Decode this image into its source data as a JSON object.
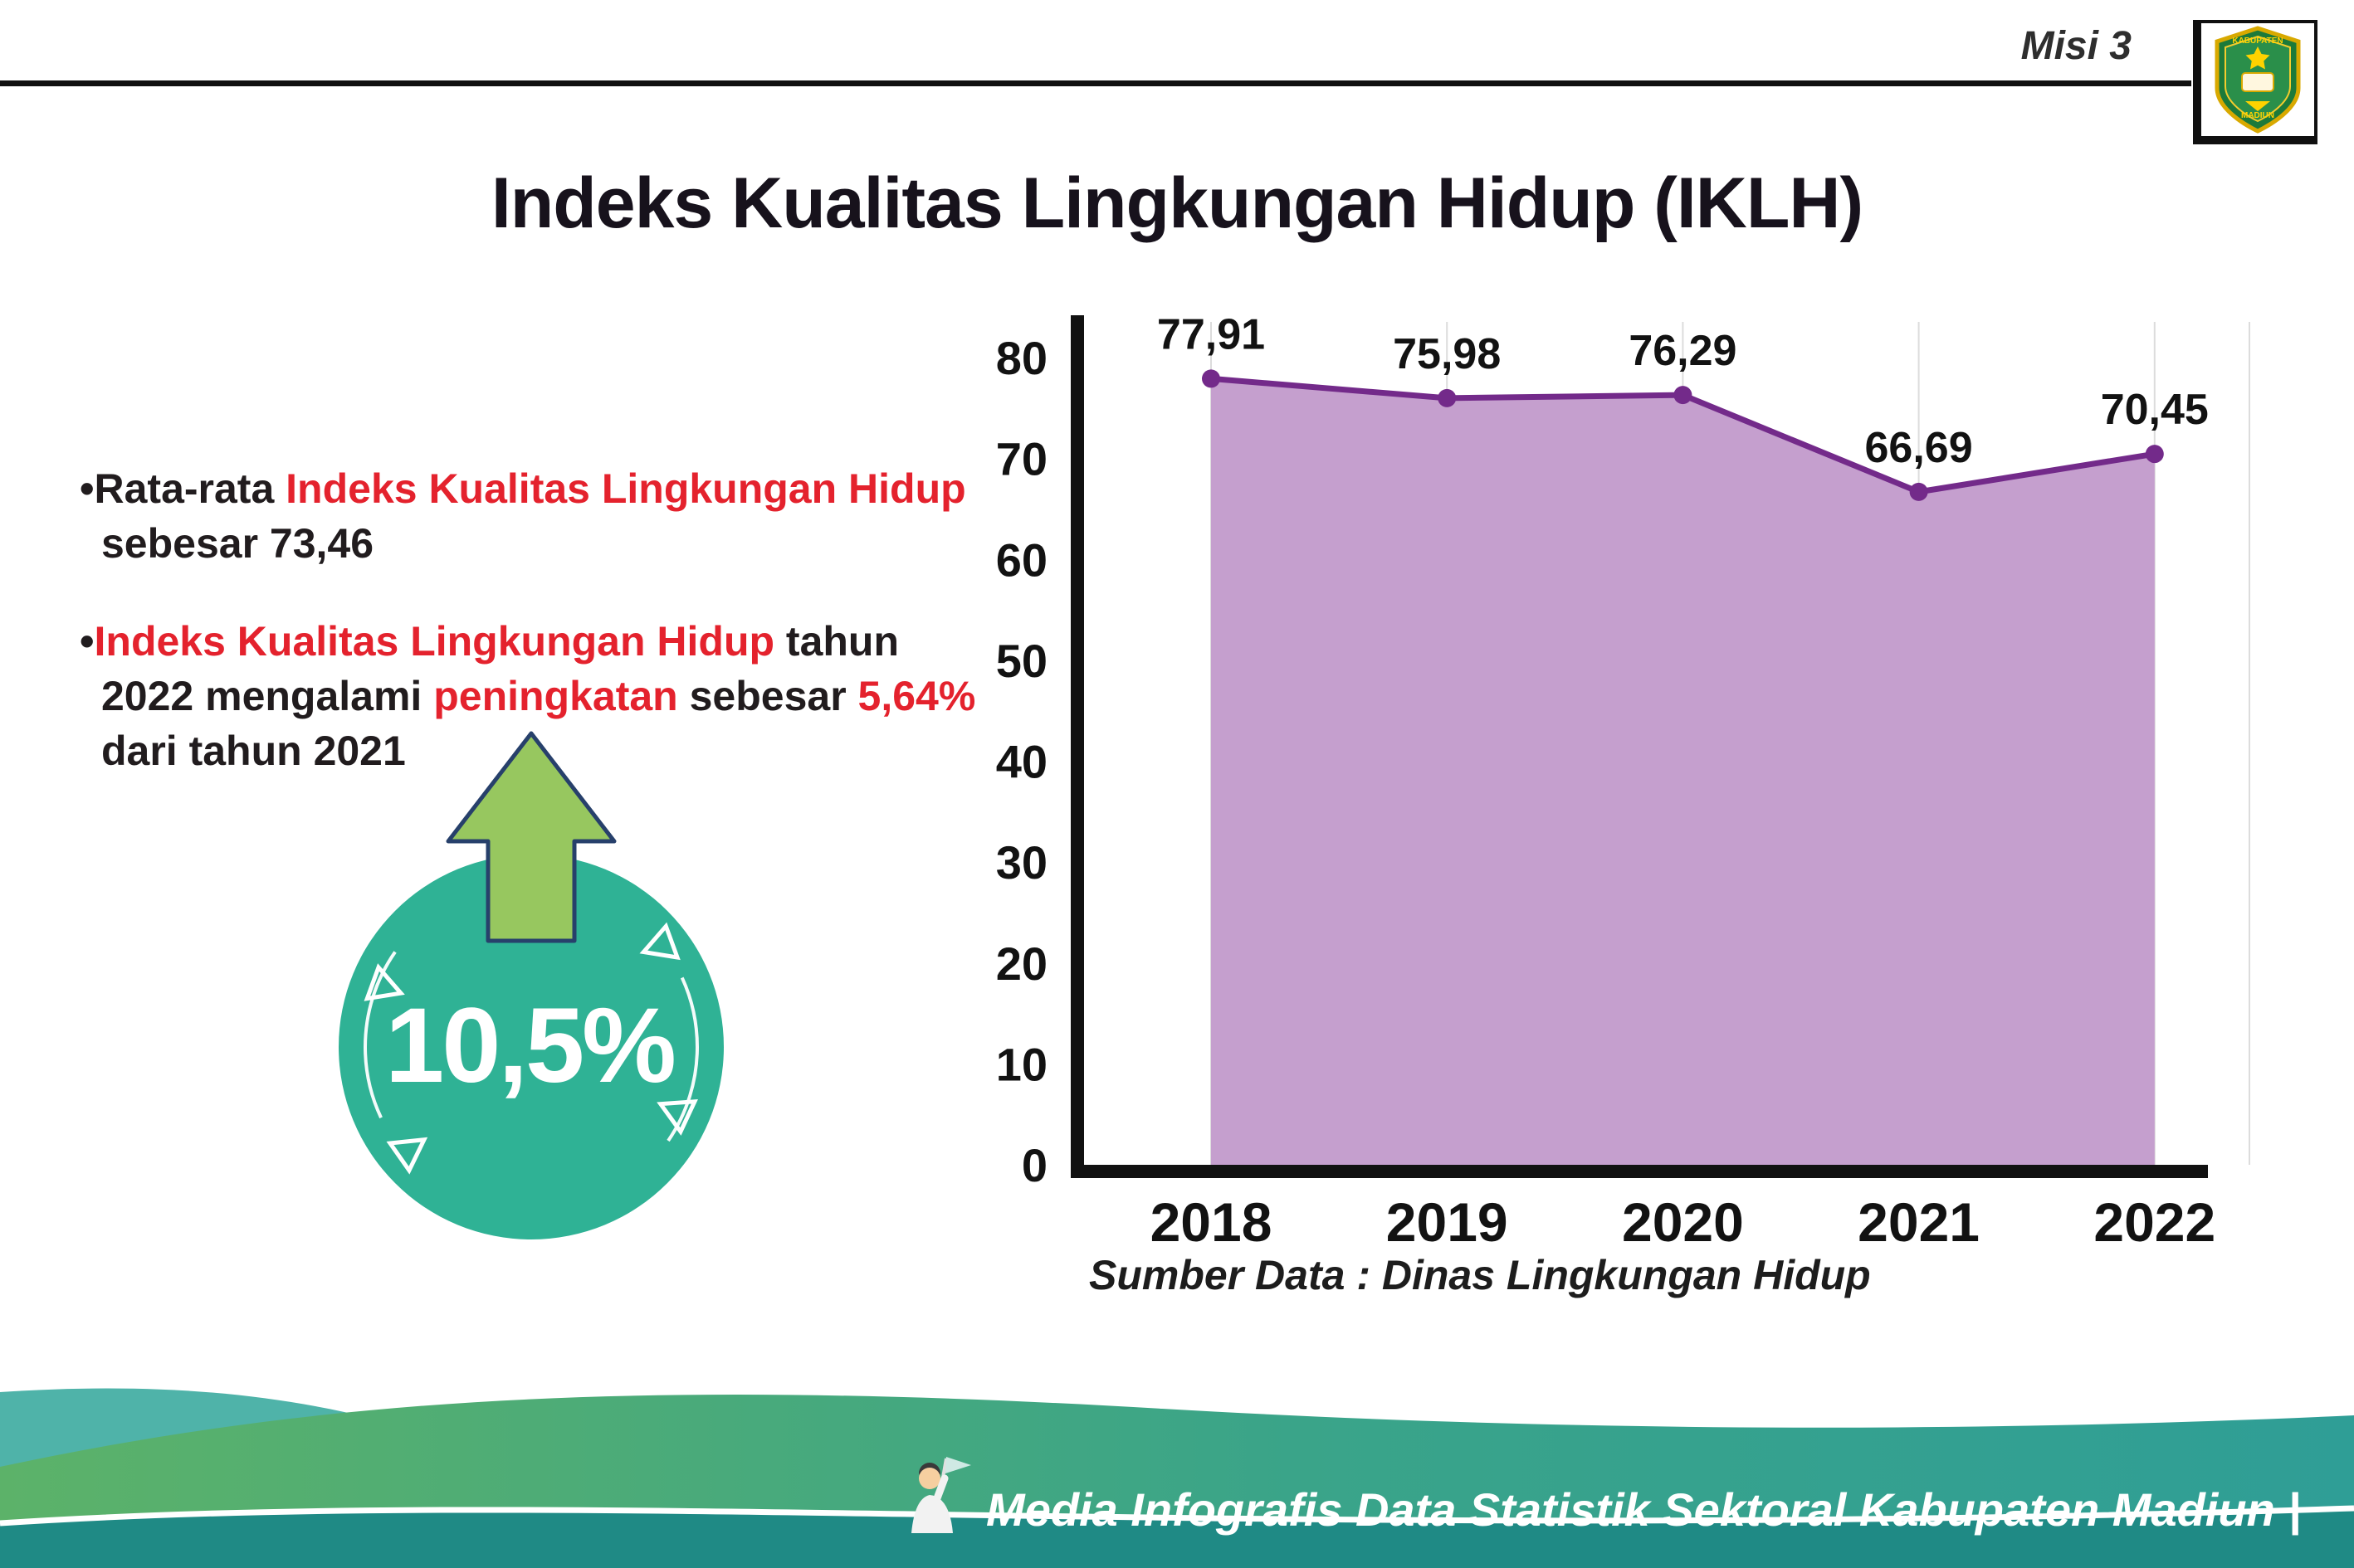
{
  "header": {
    "misi_label": "Misi 3"
  },
  "logo": {
    "line1": "KABUPATEN",
    "line2": "MADIUN"
  },
  "title": "Indeks Kualitas Lingkungan Hidup (IKLH)",
  "bullets": [
    {
      "marker": "•",
      "segments": [
        {
          "text": "Rata-rata ",
          "color": "dark"
        },
        {
          "text": "Indeks Kualitas Lingkungan Hidup",
          "color": "red"
        },
        {
          "text": " sebesar 73,46",
          "color": "dark"
        }
      ]
    },
    {
      "marker": "•",
      "segments": [
        {
          "text": "Indeks Kualitas Lingkungan Hidup",
          "color": "red"
        },
        {
          "text": " tahun 2022 mengalami ",
          "color": "dark"
        },
        {
          "text": "peningkatan",
          "color": "red"
        },
        {
          "text": " sebesar ",
          "color": "dark"
        },
        {
          "text": "5,64%",
          "color": "red"
        },
        {
          "text": " dari tahun 2021",
          "color": "dark"
        }
      ]
    }
  ],
  "badge": {
    "value": "10,5%"
  },
  "chart_data": {
    "type": "area",
    "title": "Indeks Kualitas Lingkungan Hidup (IKLH)",
    "categories": [
      "2018",
      "2019",
      "2020",
      "2021",
      "2022"
    ],
    "values": [
      77.91,
      75.98,
      76.29,
      66.69,
      70.45
    ],
    "value_labels": [
      "77,91",
      "75,98",
      "76,29",
      "66,69",
      "70,45"
    ],
    "ylim": [
      0,
      80
    ],
    "yticks": [
      0,
      10,
      20,
      30,
      40,
      50,
      60,
      70,
      80
    ],
    "grid": "vertical-light",
    "legend": "none",
    "colors": {
      "fill": "#c59fce",
      "line": "#732a8a",
      "point": "#732a8a",
      "axis": "#111111"
    },
    "source": "Sumber Data : Dinas Lingkungan Hidup"
  },
  "footer": {
    "credit": "Media Infografis Data Statistik Sektoral Kabupaten Madiun |"
  }
}
